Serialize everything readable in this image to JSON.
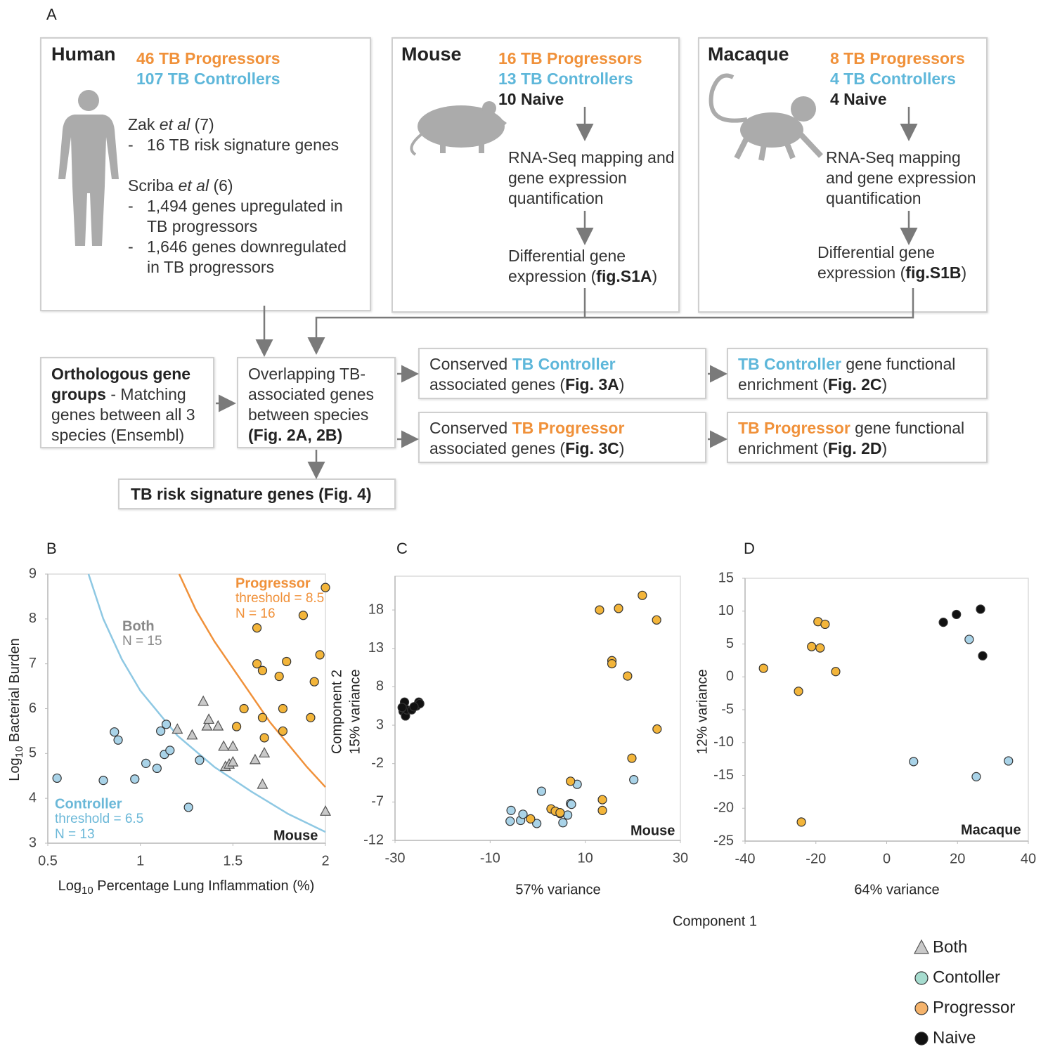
{
  "panel_a": {
    "label": "A",
    "bullet": "-",
    "human": {
      "title": "Human",
      "counts": [
        [
          {
            "text": "46 TB Progressors",
            "style": "orange"
          }
        ],
        [
          {
            "text": "107 TB Controllers",
            "style": "blue"
          }
        ]
      ],
      "refs": [
        {
          "head": [
            {
              "text": "Zak "
            },
            {
              "text": "et al",
              "style": "italic"
            },
            {
              "text": " (7)"
            }
          ],
          "items": [
            "16 TB risk signature genes"
          ]
        },
        {
          "head": [
            {
              "text": "Scriba "
            },
            {
              "text": "et al",
              "style": "italic"
            },
            {
              "text": " (6)"
            }
          ],
          "items": [
            "1,494 genes upregulated in TB progressors",
            "1,646 genes downregulated in TB progressors"
          ]
        }
      ]
    },
    "mouse": {
      "title": "Mouse",
      "counts": [
        [
          {
            "text": "16 TB Progressors",
            "style": "orange"
          }
        ],
        [
          {
            "text": "13 TB Controllers",
            "style": "blue"
          }
        ],
        [
          {
            "text": "10 Naive",
            "style": "dark"
          }
        ]
      ],
      "steps": [
        [
          {
            "text": "RNA-Seq mapping and gene expression quantification"
          }
        ],
        [
          {
            "text": "Differential gene expression ("
          },
          {
            "text": "fig.S1A",
            "style": "bold"
          },
          {
            "text": ")"
          }
        ]
      ]
    },
    "macaque": {
      "title": "Macaque",
      "counts": [
        [
          {
            "text": "8 TB Progressors",
            "style": "orange"
          }
        ],
        [
          {
            "text": "4 TB Controllers",
            "style": "blue"
          }
        ],
        [
          {
            "text": "4 Naive",
            "style": "dark"
          }
        ]
      ],
      "steps": [
        [
          {
            "text": "RNA-Seq mapping and gene expression quantification"
          }
        ],
        [
          {
            "text": "Differential gene expression ("
          },
          {
            "text": "fig.S1B",
            "style": "bold"
          },
          {
            "text": ")"
          }
        ]
      ]
    },
    "orthologous": [
      {
        "text": "Orthologous gene groups",
        "style": "bold"
      },
      {
        "text": " - Matching genes between all 3 species (Ensembl)"
      }
    ],
    "overlapping": [
      {
        "text": "Overlapping TB-associated genes between species "
      },
      {
        "text": "(Fig. 2A, 2B)",
        "style": "bold"
      }
    ],
    "conserved_controller": [
      {
        "text": "Conserved "
      },
      {
        "text": "TB Controller",
        "style": "blue"
      },
      {
        "text": " associated genes ("
      },
      {
        "text": "Fig. 3A",
        "style": "bold"
      },
      {
        "text": ")"
      }
    ],
    "controller_enrichment": [
      {
        "text": "TB Controller",
        "style": "blue"
      },
      {
        "text": " gene functional enrichment ("
      },
      {
        "text": "Fig. 2C",
        "style": "bold"
      },
      {
        "text": ")"
      }
    ],
    "conserved_progressor": [
      {
        "text": "Conserved "
      },
      {
        "text": "TB Progressor",
        "style": "orange"
      },
      {
        "text": " associated genes ("
      },
      {
        "text": "Fig. 3C",
        "style": "bold"
      },
      {
        "text": ")"
      }
    ],
    "progressor_enrichment": [
      {
        "text": "TB Progressor",
        "style": "orange"
      },
      {
        "text": " gene functional enrichment ("
      },
      {
        "text": "Fig. 2D",
        "style": "bold"
      },
      {
        "text": ")"
      }
    ],
    "risk_signature": [
      {
        "text": "TB risk signature genes",
        "style": "bold"
      },
      {
        "text": " (Fig. 4)",
        "style": "bold"
      }
    ]
  },
  "chart_data": [
    {
      "type": "scatter",
      "panel": "B",
      "xlabel": [
        "Log",
        "10",
        " Percentage Lung Inflammation (%)"
      ],
      "ylabel": [
        "Log",
        "10",
        " Bacterial Burden"
      ],
      "xlim": [
        0.5,
        2
      ],
      "xticks": [
        0.5,
        1,
        1.5,
        2
      ],
      "ylim": [
        3,
        9
      ],
      "yticks": [
        3,
        4,
        5,
        6,
        7,
        8,
        9
      ],
      "curves": [
        {
          "color": "#8ec8e3",
          "x": [
            0.72,
            0.8,
            0.9,
            1.0,
            1.2,
            1.4,
            1.6,
            1.8,
            2.0
          ],
          "y": [
            9,
            8.0,
            7.1,
            6.4,
            5.4,
            4.7,
            4.15,
            3.65,
            3.25
          ]
        },
        {
          "color": "#f0913a",
          "x": [
            1.21,
            1.3,
            1.4,
            1.5,
            1.6,
            1.7,
            1.8,
            1.9,
            2.0
          ],
          "y": [
            9,
            8.2,
            7.5,
            6.9,
            6.3,
            5.7,
            5.2,
            4.7,
            4.25
          ]
        }
      ],
      "series": [
        {
          "color": "#a9d3e8",
          "marker": "circle",
          "x": [
            0.55,
            0.86,
            0.88,
            0.8,
            0.97,
            1.03,
            1.09,
            1.11,
            1.13,
            1.14,
            1.16,
            1.26,
            1.32
          ],
          "y": [
            4.45,
            5.48,
            5.3,
            4.4,
            4.43,
            4.78,
            4.67,
            5.5,
            4.98,
            5.65,
            5.07,
            3.8,
            4.85
          ]
        },
        {
          "color": "#c9c9c9",
          "marker": "triangle",
          "x": [
            1.2,
            1.28,
            1.34,
            1.36,
            1.37,
            1.42,
            1.45,
            1.46,
            1.48,
            1.5,
            1.5,
            1.62,
            1.67,
            1.66,
            2.0
          ],
          "y": [
            5.53,
            5.4,
            6.15,
            5.6,
            5.75,
            5.6,
            5.15,
            4.7,
            4.75,
            5.15,
            4.8,
            4.85,
            5.0,
            4.3,
            3.7
          ]
        },
        {
          "color": "#f3b53a",
          "marker": "circle",
          "x": [
            1.52,
            1.56,
            1.63,
            1.63,
            1.66,
            1.66,
            1.67,
            1.75,
            1.77,
            1.77,
            1.79,
            1.88,
            1.92,
            1.94,
            1.97,
            2.0
          ],
          "y": [
            5.6,
            6.0,
            7.8,
            7.0,
            6.85,
            5.8,
            5.35,
            6.72,
            6.0,
            5.5,
            7.05,
            8.08,
            5.8,
            6.6,
            7.2,
            8.7
          ]
        }
      ],
      "annotations": [
        {
          "text": "Progressor",
          "color": "#f0913a",
          "style": "bold"
        },
        {
          "text": "threshold = 8.5",
          "color": "#f0913a"
        },
        {
          "text": "N = 16",
          "color": "#f0913a"
        },
        {
          "text": "Both",
          "color": "#888888",
          "style": "bold"
        },
        {
          "text": "N = 15",
          "color": "#888888"
        },
        {
          "text": "Controller",
          "color": "#6bb8d8",
          "style": "bold"
        },
        {
          "text": "threshold = 6.5",
          "color": "#6bb8d8"
        },
        {
          "text": "N = 13",
          "color": "#6bb8d8"
        },
        {
          "text": "Mouse",
          "color": "#222222",
          "style": "bold"
        }
      ]
    },
    {
      "type": "scatter",
      "panel": "C",
      "xlabel": "57% variance",
      "ylabel": "Component 2",
      "ylabel2": "15% variance",
      "xlim": [
        -30,
        30
      ],
      "xticks": [
        -30,
        -10,
        10,
        30
      ],
      "ylim": [
        -12,
        22.4
      ],
      "yticks": [
        -12,
        -7,
        -2,
        3,
        8,
        13,
        18
      ],
      "series": [
        {
          "color": "#a9d3e8",
          "marker": "circle",
          "x": [
            -5.6,
            -5.8,
            -3.6,
            -3.1,
            -0.2,
            0.8,
            5.3,
            6.3,
            6.9,
            7.1,
            8.3,
            20.2,
            4.7
          ],
          "y": [
            -8.1,
            -9.5,
            -9.4,
            -8.6,
            -9.8,
            -5.6,
            -9.7,
            -8.7,
            -7.2,
            -7.3,
            -4.7,
            -4.1,
            -8.5
          ]
        },
        {
          "color": "#f3b53a",
          "marker": "circle",
          "x": [
            -1.5,
            2.8,
            3.7,
            4.7,
            6.9,
            13,
            17,
            22,
            25,
            15.6,
            15.6,
            18.9,
            25.1,
            19.8,
            13.6,
            13.6
          ],
          "y": [
            -9.2,
            -7.9,
            -8.2,
            -8.4,
            -4.3,
            18,
            18.2,
            19.9,
            16.7,
            11.4,
            11,
            9.4,
            2.5,
            -1.3,
            -6.7,
            -8.1
          ]
        },
        {
          "color": "#111111",
          "marker": "circle",
          "x": [
            -28.3,
            -28,
            -27.8,
            -27.5,
            -26.5,
            -25.5,
            -25,
            -24.8,
            -28.5,
            -26
          ],
          "y": [
            4.8,
            6,
            4.2,
            5,
            5,
            5.5,
            6,
            5.8,
            5.3,
            5.4
          ]
        }
      ],
      "annotations": [
        {
          "text": "Mouse",
          "color": "#222222",
          "style": "bold"
        }
      ]
    },
    {
      "type": "scatter",
      "panel": "D",
      "xlabel": "64% variance",
      "ylabel": "12% variance",
      "xlim": [
        -40,
        40
      ],
      "xticks": [
        -40,
        -20,
        0,
        20,
        40
      ],
      "ylim": [
        -25,
        15
      ],
      "yticks": [
        -25,
        -20,
        -15,
        -10,
        -5,
        0,
        5,
        10,
        15
      ],
      "series": [
        {
          "color": "#a9d3e8",
          "marker": "circle",
          "x": [
            23.3,
            7.6,
            25.3,
            34.4
          ],
          "y": [
            5.7,
            -12.9,
            -15.2,
            -12.8
          ]
        },
        {
          "color": "#f3b53a",
          "marker": "circle",
          "x": [
            -34.8,
            -19.4,
            -17.4,
            -21.2,
            -18.8,
            -14.4,
            -24.9,
            -24.1
          ],
          "y": [
            1.3,
            8.4,
            8.0,
            4.6,
            4.4,
            0.8,
            -2.2,
            -22.1
          ]
        },
        {
          "color": "#111111",
          "marker": "circle",
          "x": [
            16,
            19.7,
            26.5,
            27.1
          ],
          "y": [
            8.3,
            9.5,
            10.3,
            3.2
          ]
        }
      ],
      "annotations": [
        {
          "text": "Macaque",
          "color": "#222222",
          "style": "bold"
        }
      ]
    }
  ],
  "shared_xlabel": "Component 1",
  "legend": [
    {
      "name": "Both",
      "color": "#c9c9c9",
      "marker": "triangle"
    },
    {
      "name": "Contoller",
      "color": "#a6dccf",
      "marker": "circle"
    },
    {
      "name": "Progressor",
      "color": "#f5b36b",
      "marker": "circle"
    },
    {
      "name": "Naive",
      "color": "#111111",
      "marker": "circle"
    }
  ]
}
